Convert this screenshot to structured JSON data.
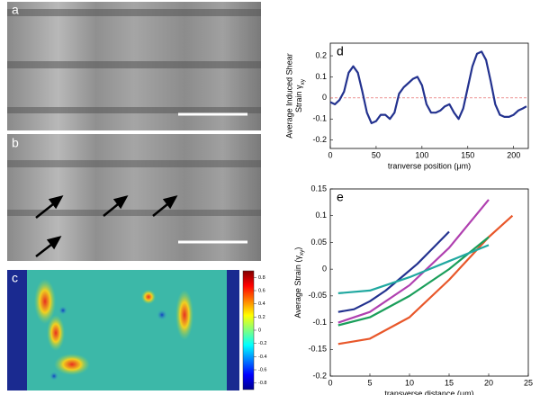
{
  "panels": {
    "labels": [
      "a",
      "b",
      "c"
    ]
  },
  "colorbar": {
    "lim": [
      -0.9,
      0.9
    ],
    "ticks": [
      0.8,
      0.6,
      0.4,
      0.2,
      0,
      -0.2,
      -0.4,
      -0.6,
      -0.8
    ]
  },
  "chart_data": [
    {
      "type": "line",
      "label": "d",
      "ylabel": [
        "Average Induced Shear",
        "Strain γ",
        "xy"
      ],
      "xlabel": "tranverse position (μm)",
      "xlim": [
        0,
        216
      ],
      "xticks": [
        0,
        50,
        100,
        150,
        200
      ],
      "ylim": [
        -0.24,
        0.26
      ],
      "yticks": [
        -0.2,
        -0.1,
        0,
        0.1,
        0.2
      ],
      "zero_line": true,
      "series": [
        {
          "color": "#23328f",
          "x": [
            0,
            5,
            10,
            15,
            20,
            25,
            30,
            35,
            40,
            45,
            50,
            55,
            60,
            65,
            70,
            75,
            80,
            85,
            90,
            95,
            100,
            105,
            110,
            115,
            120,
            125,
            130,
            135,
            140,
            145,
            150,
            155,
            160,
            165,
            170,
            175,
            180,
            185,
            190,
            195,
            200,
            205,
            210,
            214
          ],
          "values": [
            -0.02,
            -0.03,
            -0.01,
            0.03,
            0.12,
            0.15,
            0.12,
            0.03,
            -0.07,
            -0.12,
            -0.11,
            -0.08,
            -0.08,
            -0.1,
            -0.07,
            0.02,
            0.05,
            0.07,
            0.09,
            0.1,
            0.06,
            -0.03,
            -0.07,
            -0.07,
            -0.06,
            -0.04,
            -0.03,
            -0.07,
            -0.1,
            -0.05,
            0.05,
            0.15,
            0.21,
            0.22,
            0.18,
            0.08,
            -0.03,
            -0.08,
            -0.09,
            -0.09,
            -0.08,
            -0.06,
            -0.05,
            -0.04
          ]
        }
      ]
    },
    {
      "type": "line",
      "label": "e",
      "ylabel": [
        "Average Strain (γ",
        "xy",
        ")"
      ],
      "xlabel": "transverse distance (μm)",
      "xlim": [
        0,
        25
      ],
      "xticks": [
        0,
        5,
        10,
        15,
        20,
        25
      ],
      "ylim": [
        -0.2,
        0.15
      ],
      "yticks": [
        -0.2,
        -0.15,
        -0.1,
        -0.05,
        0,
        0.05,
        0.1,
        0.15
      ],
      "zero_line": false,
      "series": [
        {
          "color": "#23328f",
          "x": [
            1,
            3,
            5,
            7,
            9,
            11,
            13,
            15
          ],
          "values": [
            -0.08,
            -0.075,
            -0.06,
            -0.04,
            -0.015,
            0.01,
            0.04,
            0.07
          ]
        },
        {
          "color": "#b040b0",
          "x": [
            1,
            5,
            10,
            15,
            20
          ],
          "values": [
            -0.1,
            -0.08,
            -0.03,
            0.04,
            0.13
          ]
        },
        {
          "color": "#e8572a",
          "x": [
            1,
            5,
            10,
            15,
            20,
            23
          ],
          "values": [
            -0.14,
            -0.13,
            -0.09,
            -0.02,
            0.06,
            0.1
          ]
        },
        {
          "color": "#1a9e5a",
          "x": [
            1,
            5,
            10,
            15,
            20
          ],
          "values": [
            -0.105,
            -0.09,
            -0.05,
            0.0,
            0.06
          ]
        },
        {
          "color": "#20a8a0",
          "x": [
            1,
            5,
            10,
            15,
            20
          ],
          "values": [
            -0.045,
            -0.04,
            -0.015,
            0.015,
            0.045
          ]
        }
      ]
    }
  ]
}
